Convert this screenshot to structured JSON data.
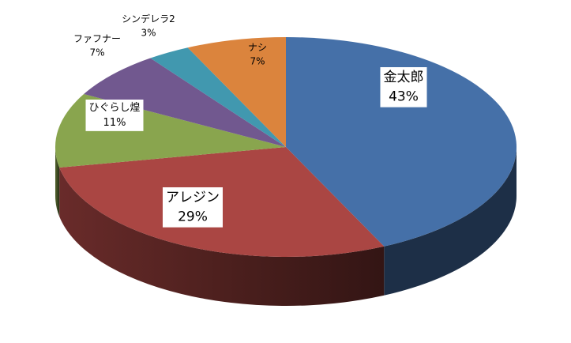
{
  "chart_data": {
    "type": "pie",
    "title": "",
    "slices": [
      {
        "label": "金太郎",
        "value": 43,
        "display": "43%",
        "color": "#4570A8"
      },
      {
        "label": "アレジン",
        "value": 29,
        "display": "29%",
        "color": "#AA4643"
      },
      {
        "label": "ひぐらし煌",
        "value": 11,
        "display": "11%",
        "color": "#89A54E"
      },
      {
        "label": "ファフナー",
        "value": 7,
        "display": "7%",
        "color": "#71588F"
      },
      {
        "label": "シンデレラ2",
        "value": 3,
        "display": "3%",
        "color": "#4198AF"
      },
      {
        "label": "ナシ",
        "value": 7,
        "display": "7%",
        "color": "#DB843D"
      }
    ]
  }
}
